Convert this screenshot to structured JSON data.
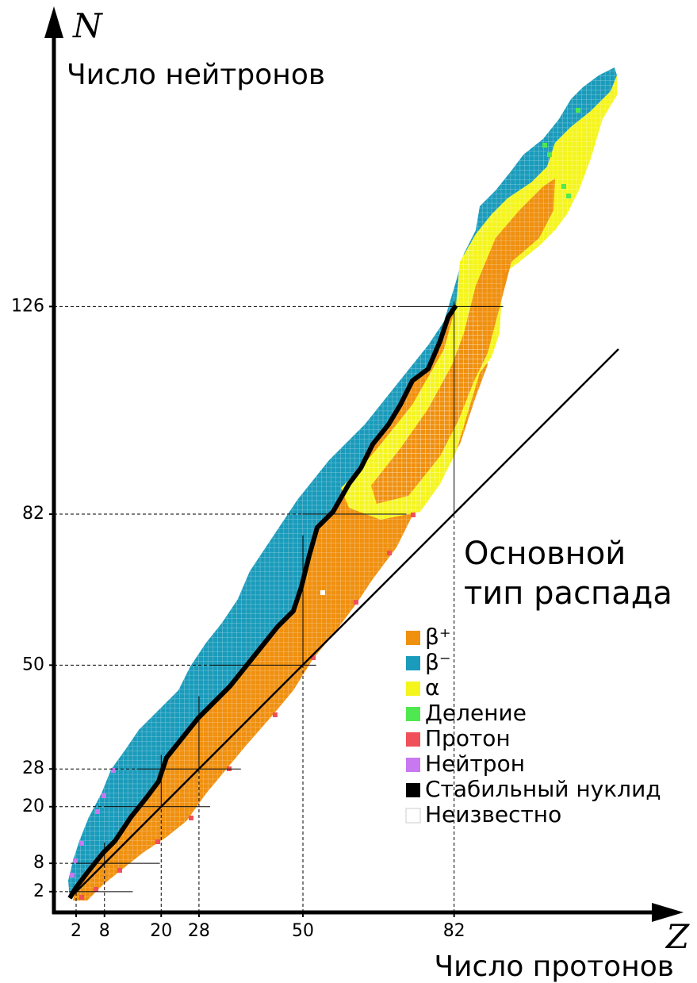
{
  "chart_data": {
    "type": "nuclide-chart",
    "y_symbol": "N",
    "y_label": "Число нейтронов",
    "x_symbol": "Z",
    "x_label": "Число протонов",
    "xlim": [
      -2.7,
      127.7
    ],
    "ylim": [
      -2.4,
      187.6
    ],
    "xticks": [
      2,
      8,
      20,
      28,
      50,
      82
    ],
    "yticks": [
      2,
      8,
      20,
      28,
      50,
      82,
      126
    ],
    "legend": {
      "title_lines": [
        "Основной",
        "тип распада"
      ],
      "items": [
        {
          "label": "β⁺",
          "color": "#f0900f"
        },
        {
          "label": "β⁻",
          "color": "#1a9bbb"
        },
        {
          "label": "α",
          "color": "#f5f51e"
        },
        {
          "label": "Деление",
          "color": "#50e850"
        },
        {
          "label": "Протон",
          "color": "#f0505a"
        },
        {
          "label": "Нейтрон",
          "color": "#c878f0"
        },
        {
          "label": "Стабильный нуклид",
          "color": "#000000"
        },
        {
          "label": "Неизвестно",
          "color": "#ffffff"
        }
      ]
    }
  }
}
